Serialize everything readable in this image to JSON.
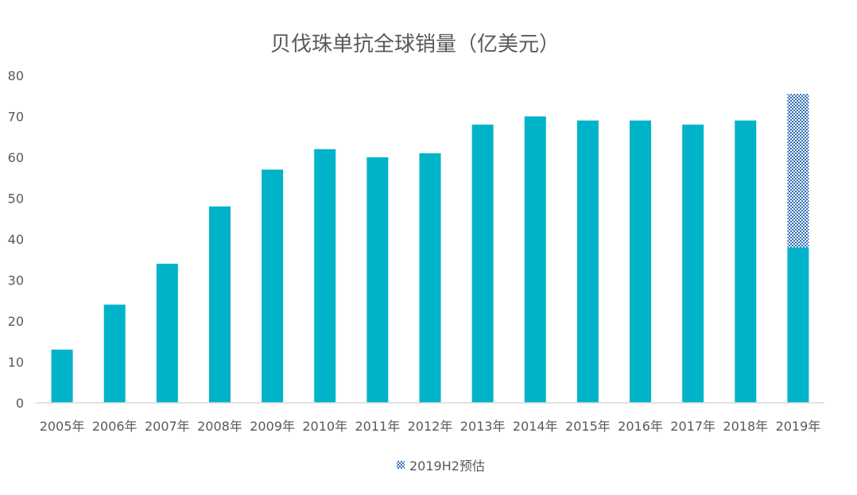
{
  "chart_data": {
    "type": "bar",
    "title": "贝伐珠单抗全球销量（亿美元）",
    "categories": [
      "2005年",
      "2006年",
      "2007年",
      "2008年",
      "2009年",
      "2010年",
      "2011年",
      "2012年",
      "2013年",
      "2014年",
      "2015年",
      "2016年",
      "2017年",
      "2018年",
      "2019年"
    ],
    "series": [
      {
        "values": [
          13,
          24,
          34,
          48,
          57,
          62,
          60,
          61,
          68,
          70,
          69,
          69,
          68,
          69,
          38
        ],
        "color": "#00b3c9"
      },
      {
        "name": "2019H2预估",
        "values": [
          null,
          null,
          null,
          null,
          null,
          null,
          null,
          null,
          null,
          null,
          null,
          null,
          null,
          null,
          37.5
        ],
        "color": "#2e6db4",
        "pattern": "dotted",
        "stacked_on": 0
      }
    ],
    "ylim": [
      0,
      80
    ],
    "yticks": [
      0,
      10,
      20,
      30,
      40,
      50,
      60,
      70,
      80
    ],
    "xlabel": "",
    "ylabel": "",
    "grid": false,
    "legend": {
      "placement": "bottom-center"
    }
  }
}
